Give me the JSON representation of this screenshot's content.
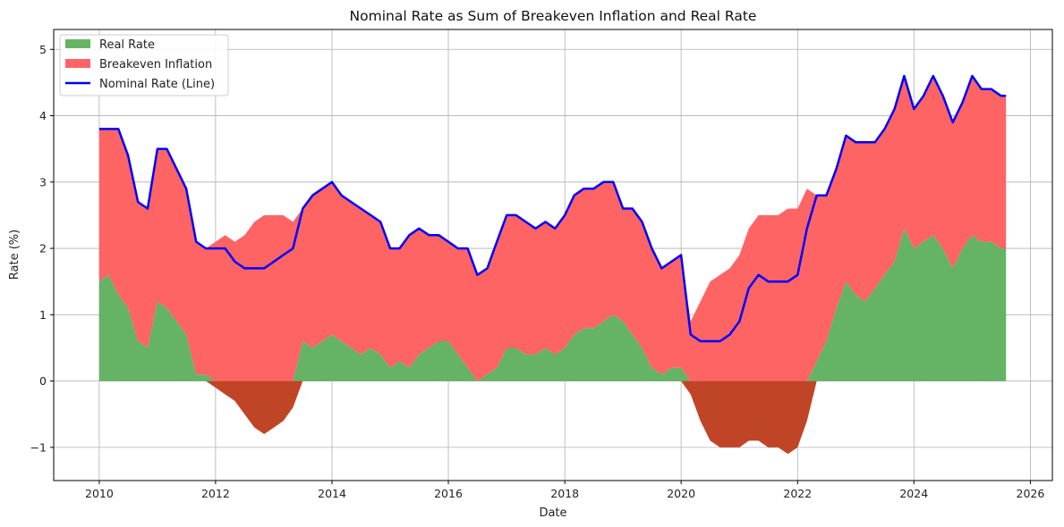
{
  "chart_data": {
    "type": "area",
    "title": "Nominal Rate as Sum of Breakeven Inflation and Real Rate",
    "xlabel": "Date",
    "ylabel": "Rate (%)",
    "xlim": [
      "2009-03-21",
      "2026-05-19"
    ],
    "ylim": [
      -1.5,
      5.3
    ],
    "x_ticks": [
      "2010",
      "2012",
      "2014",
      "2016",
      "2018",
      "2020",
      "2022",
      "2024",
      "2026"
    ],
    "y_ticks": [
      -1,
      0,
      1,
      2,
      3,
      4,
      5
    ],
    "y_tick_labels": [
      "−1",
      "0",
      "1",
      "2",
      "3",
      "4",
      "5"
    ],
    "grid": true,
    "legend_position": "top-left",
    "x": [
      "2010-01-01",
      "2010-03-01",
      "2010-05-01",
      "2010-07-01",
      "2010-09-01",
      "2010-11-01",
      "2011-01-01",
      "2011-03-01",
      "2011-05-01",
      "2011-07-01",
      "2011-09-01",
      "2011-11-01",
      "2012-01-01",
      "2012-03-01",
      "2012-05-01",
      "2012-07-01",
      "2012-09-01",
      "2012-11-01",
      "2013-01-01",
      "2013-03-01",
      "2013-05-01",
      "2013-07-01",
      "2013-09-01",
      "2013-11-01",
      "2014-01-01",
      "2014-03-01",
      "2014-05-01",
      "2014-07-01",
      "2014-09-01",
      "2014-11-01",
      "2015-01-01",
      "2015-03-01",
      "2015-05-01",
      "2015-07-01",
      "2015-09-01",
      "2015-11-01",
      "2016-01-01",
      "2016-03-01",
      "2016-05-01",
      "2016-07-01",
      "2016-09-01",
      "2016-11-01",
      "2017-01-01",
      "2017-03-01",
      "2017-05-01",
      "2017-07-01",
      "2017-09-01",
      "2017-11-01",
      "2018-01-01",
      "2018-03-01",
      "2018-05-01",
      "2018-07-01",
      "2018-09-01",
      "2018-11-01",
      "2019-01-01",
      "2019-03-01",
      "2019-05-01",
      "2019-07-01",
      "2019-09-01",
      "2019-11-01",
      "2020-01-01",
      "2020-03-01",
      "2020-05-01",
      "2020-07-01",
      "2020-09-01",
      "2020-11-01",
      "2021-01-01",
      "2021-03-01",
      "2021-05-01",
      "2021-07-01",
      "2021-09-01",
      "2021-11-01",
      "2022-01-01",
      "2022-03-01",
      "2022-05-01",
      "2022-07-01",
      "2022-09-01",
      "2022-11-01",
      "2023-01-01",
      "2023-03-01",
      "2023-05-01",
      "2023-07-01",
      "2023-09-01",
      "2023-11-01",
      "2024-01-01",
      "2024-03-01",
      "2024-05-01",
      "2024-07-01",
      "2024-09-01",
      "2024-11-01",
      "2025-01-01",
      "2025-03-01",
      "2025-05-01",
      "2025-07-01",
      "2025-08-01"
    ],
    "series": [
      {
        "name": "Real Rate",
        "color": "#65b365",
        "negative_color": "#c04527",
        "values": [
          1.5,
          1.6,
          1.3,
          1.1,
          0.6,
          0.5,
          1.2,
          1.1,
          0.9,
          0.7,
          0.1,
          0.1,
          -0.1,
          -0.2,
          -0.3,
          -0.5,
          -0.7,
          -0.8,
          -0.7,
          -0.6,
          -0.4,
          0.6,
          0.5,
          0.6,
          0.7,
          0.6,
          0.5,
          0.4,
          0.5,
          0.4,
          0.2,
          0.3,
          0.2,
          0.4,
          0.5,
          0.6,
          0.6,
          0.4,
          0.2,
          0.0,
          0.1,
          0.2,
          0.5,
          0.5,
          0.4,
          0.4,
          0.5,
          0.4,
          0.5,
          0.7,
          0.8,
          0.8,
          0.9,
          1.0,
          0.9,
          0.7,
          0.5,
          0.2,
          0.1,
          0.2,
          0.2,
          -0.2,
          -0.6,
          -0.9,
          -1.0,
          -1.0,
          -1.0,
          -0.9,
          -0.9,
          -1.0,
          -1.0,
          -1.1,
          -1.0,
          -0.6,
          0.3,
          0.6,
          1.1,
          1.5,
          1.3,
          1.2,
          1.4,
          1.6,
          1.8,
          2.3,
          2.0,
          2.1,
          2.2,
          2.0,
          1.7,
          2.0,
          2.2,
          2.1,
          2.1,
          2.0,
          2.0
        ]
      },
      {
        "name": "Breakeven Inflation",
        "color": "#ff6464",
        "values": [
          2.3,
          2.2,
          2.5,
          2.3,
          2.1,
          2.1,
          2.3,
          2.4,
          2.3,
          2.2,
          2.0,
          1.9,
          2.1,
          2.2,
          2.1,
          2.2,
          2.4,
          2.5,
          2.5,
          2.5,
          2.4,
          2.0,
          2.3,
          2.3,
          2.3,
          2.2,
          2.2,
          2.2,
          2.0,
          2.0,
          1.8,
          1.7,
          2.0,
          1.9,
          1.7,
          1.6,
          1.5,
          1.6,
          1.8,
          1.6,
          1.6,
          1.9,
          2.0,
          2.0,
          2.0,
          1.9,
          1.9,
          1.9,
          2.0,
          2.1,
          2.1,
          2.1,
          2.1,
          2.0,
          1.7,
          1.9,
          1.9,
          1.8,
          1.6,
          1.6,
          1.7,
          0.9,
          1.2,
          1.5,
          1.6,
          1.7,
          1.9,
          2.3,
          2.5,
          2.5,
          2.5,
          2.6,
          2.6,
          2.9,
          2.5,
          2.2,
          2.1,
          2.2,
          2.3,
          2.4,
          2.2,
          2.2,
          2.3,
          2.3,
          2.1,
          2.2,
          2.4,
          2.3,
          2.2,
          2.2,
          2.4,
          2.3,
          2.3,
          2.3,
          2.3
        ]
      },
      {
        "name": "Nominal Rate (Line)",
        "color": "#0000ff",
        "values": [
          3.8,
          3.8,
          3.8,
          3.4,
          2.7,
          2.6,
          3.5,
          3.5,
          3.2,
          2.9,
          2.1,
          2.0,
          2.0,
          2.0,
          1.8,
          1.7,
          1.7,
          1.7,
          1.8,
          1.9,
          2.0,
          2.6,
          2.8,
          2.9,
          3.0,
          2.8,
          2.7,
          2.6,
          2.5,
          2.4,
          2.0,
          2.0,
          2.2,
          2.3,
          2.2,
          2.2,
          2.1,
          2.0,
          2.0,
          1.6,
          1.7,
          2.1,
          2.5,
          2.5,
          2.4,
          2.3,
          2.4,
          2.3,
          2.5,
          2.8,
          2.9,
          2.9,
          3.0,
          3.0,
          2.6,
          2.6,
          2.4,
          2.0,
          1.7,
          1.8,
          1.9,
          0.7,
          0.6,
          0.6,
          0.6,
          0.7,
          0.9,
          1.4,
          1.6,
          1.5,
          1.5,
          1.5,
          1.6,
          2.3,
          2.8,
          2.8,
          3.2,
          3.7,
          3.6,
          3.6,
          3.6,
          3.8,
          4.1,
          4.6,
          4.1,
          4.3,
          4.6,
          4.3,
          3.9,
          4.2,
          4.6,
          4.4,
          4.4,
          4.3,
          4.3
        ]
      }
    ]
  }
}
